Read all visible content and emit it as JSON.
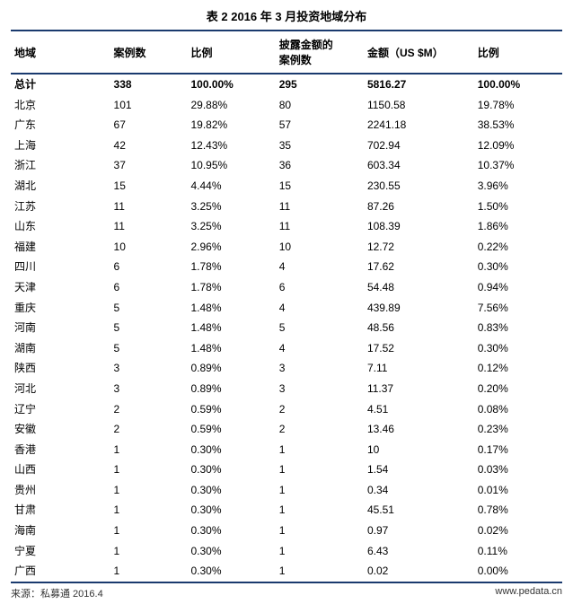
{
  "title": "表 2  2016 年 3 月投资地域分布",
  "columns": [
    "地域",
    "案例数",
    "比例",
    "披露金额的\n案例数",
    "金额（US $M）",
    "比例"
  ],
  "totalRow": [
    "总计",
    "338",
    "100.00%",
    "295",
    "5816.27",
    "100.00%"
  ],
  "rows": [
    [
      "北京",
      "101",
      "29.88%",
      "80",
      "1150.58",
      "19.78%"
    ],
    [
      "广东",
      "67",
      "19.82%",
      "57",
      "2241.18",
      "38.53%"
    ],
    [
      "上海",
      "42",
      "12.43%",
      "35",
      "702.94",
      "12.09%"
    ],
    [
      "浙江",
      "37",
      "10.95%",
      "36",
      "603.34",
      "10.37%"
    ],
    [
      "湖北",
      "15",
      "4.44%",
      "15",
      "230.55",
      "3.96%"
    ],
    [
      "江苏",
      "11",
      "3.25%",
      "11",
      "87.26",
      "1.50%"
    ],
    [
      "山东",
      "11",
      "3.25%",
      "11",
      "108.39",
      "1.86%"
    ],
    [
      "福建",
      "10",
      "2.96%",
      "10",
      "12.72",
      "0.22%"
    ],
    [
      "四川",
      "6",
      "1.78%",
      "4",
      "17.62",
      "0.30%"
    ],
    [
      "天津",
      "6",
      "1.78%",
      "6",
      "54.48",
      "0.94%"
    ],
    [
      "重庆",
      "5",
      "1.48%",
      "4",
      "439.89",
      "7.56%"
    ],
    [
      "河南",
      "5",
      "1.48%",
      "5",
      "48.56",
      "0.83%"
    ],
    [
      "湖南",
      "5",
      "1.48%",
      "4",
      "17.52",
      "0.30%"
    ],
    [
      "陕西",
      "3",
      "0.89%",
      "3",
      "7.11",
      "0.12%"
    ],
    [
      "河北",
      "3",
      "0.89%",
      "3",
      "11.37",
      "0.20%"
    ],
    [
      "辽宁",
      "2",
      "0.59%",
      "2",
      "4.51",
      "0.08%"
    ],
    [
      "安徽",
      "2",
      "0.59%",
      "2",
      "13.46",
      "0.23%"
    ],
    [
      "香港",
      "1",
      "0.30%",
      "1",
      "10",
      "0.17%"
    ],
    [
      "山西",
      "1",
      "0.30%",
      "1",
      "1.54",
      "0.03%"
    ],
    [
      "贵州",
      "1",
      "0.30%",
      "1",
      "0.34",
      "0.01%"
    ],
    [
      "甘肃",
      "1",
      "0.30%",
      "1",
      "45.51",
      "0.78%"
    ],
    [
      "海南",
      "1",
      "0.30%",
      "1",
      "0.97",
      "0.02%"
    ],
    [
      "宁夏",
      "1",
      "0.30%",
      "1",
      "6.43",
      "0.11%"
    ],
    [
      "广西",
      "1",
      "0.30%",
      "1",
      "0.02",
      "0.00%"
    ]
  ],
  "footer": {
    "source": "来源：私募通 2016.4",
    "url": "www.pedata.cn"
  },
  "style": {
    "border_color": "#1a3a6e",
    "background_color": "#ffffff",
    "title_fontsize": 13,
    "header_fontsize": 12,
    "cell_fontsize": 12,
    "footer_fontsize": 11,
    "col_widths_pct": [
      18,
      14,
      16,
      16,
      20,
      16
    ]
  }
}
